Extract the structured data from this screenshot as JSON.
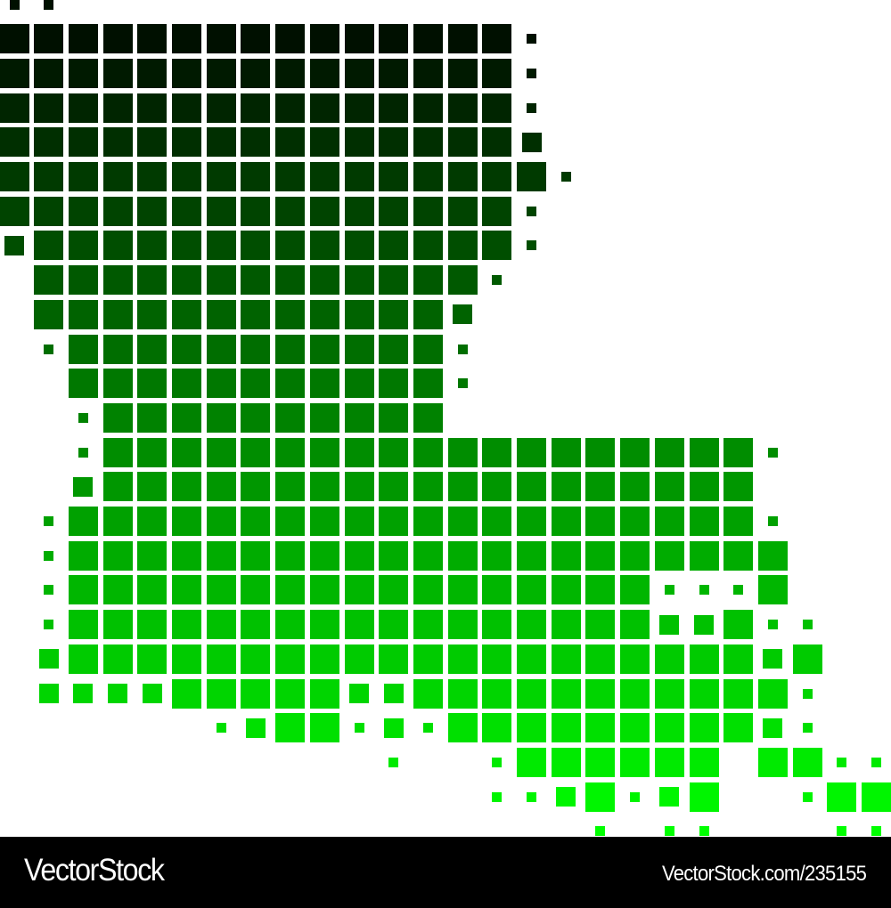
{
  "map": {
    "region": "Louisiana",
    "style": "dot-grid",
    "color_top": "#001000",
    "color_bottom": "#00ff00",
    "legend": "L = large square, M = medium square, s = small square, . = empty",
    "grid_rows": [
      "ss........................",
      "LLLLLLLLLLLLLLLs..........",
      "LLLLLLLLLLLLLLLs..........",
      "LLLLLLLLLLLLLLLs..........",
      "LLLLLLLLLLLLLLLM..........",
      "LLLLLLLLLLLLLLLLs.........",
      "LLLLLLLLLLLLLLLs..........",
      "MLLLLLLLLLLLLLLs..........",
      ".LLLLLLLLLLLLLs...........",
      ".LLLLLLLLLLLLM............",
      ".sLLLLLLLLLLLs............",
      "..LLLLLLLLLLLs............",
      "..sLLLLLLLLLL.............",
      "..sLLLLLLLLLLLLLLLLLLLs...",
      "..MLLLLLLLLLLLLLLLLLLL....",
      ".sLLLLLLLLLLLLLLLLLLLLs...",
      ".sLLLLLLLLLLLLLLLLLLLLL...",
      ".sLLLLLLLLLLLLLLLLLsssL...",
      ".sLLLLLLLLLLLLLLLLLMMLss..",
      ".MLLLLLLLLLLLLLLLLLLLLML..",
      ".MMMMLLLLLMMLLLLLLLLLLLs..",
      "......sMLLsMsLLLLLLLLLMs..",
      "...........s..sLLLLLL.LLss",
      "..............ssMLsML..sLL",
      ".................s.ss...ss"
    ]
  },
  "banner": {
    "brand": "VectorStock",
    "reference": "VectorStock.com/235155"
  }
}
